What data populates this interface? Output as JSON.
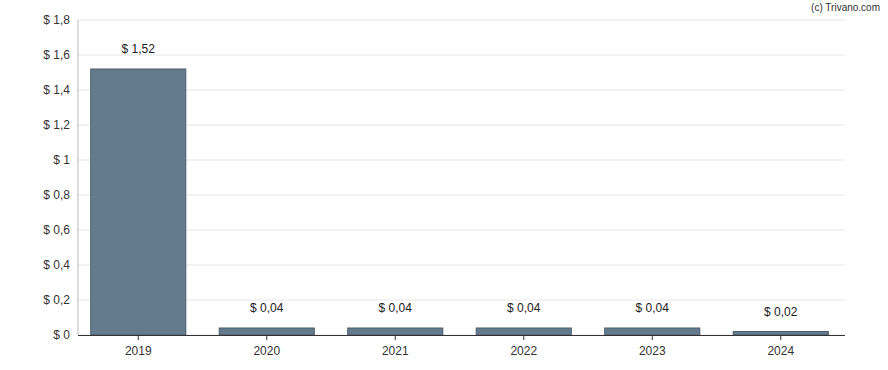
{
  "chart_data": {
    "type": "bar",
    "annotations": [
      "(c) Trivano.com"
    ],
    "categories": [
      "2019",
      "2020",
      "2021",
      "2022",
      "2023",
      "2024"
    ],
    "values": [
      1.52,
      0.04,
      0.04,
      0.04,
      0.04,
      0.02
    ],
    "value_labels": [
      "$ 1,52",
      "$ 0,04",
      "$ 0,04",
      "$ 0,04",
      "$ 0,04",
      "$ 0,02"
    ],
    "color": "#647b8d",
    "ylim": [
      0,
      1.8
    ],
    "yticks": [
      {
        "value": 0,
        "label": "$ 0"
      },
      {
        "value": 0.2,
        "label": "$ 0,2"
      },
      {
        "value": 0.4,
        "label": "$ 0,4"
      },
      {
        "value": 0.6,
        "label": "$ 0,6"
      },
      {
        "value": 0.8,
        "label": "$ 0,8"
      },
      {
        "value": 1,
        "label": "$ 1"
      },
      {
        "value": 1.2,
        "label": "$ 1,2"
      },
      {
        "value": 1.4,
        "label": "$ 1,4"
      },
      {
        "value": 1.6,
        "label": "$ 1,6"
      },
      {
        "value": 1.8,
        "label": "$ 1,8"
      }
    ],
    "grid": true,
    "data_labels": true
  }
}
